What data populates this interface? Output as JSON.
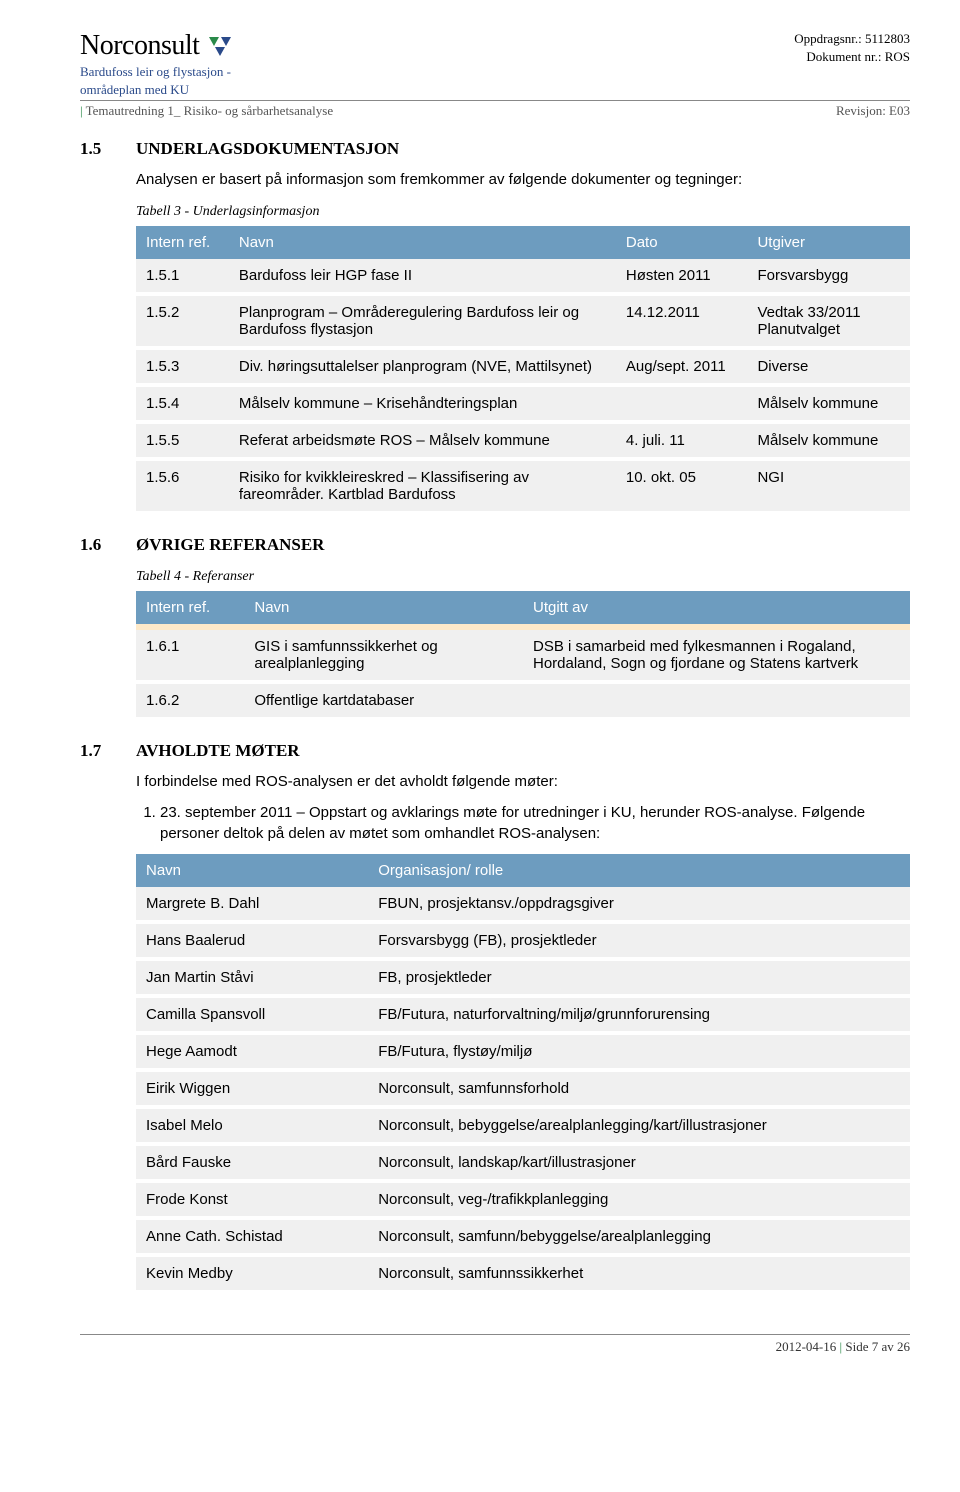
{
  "header": {
    "logo_text": "Norconsult",
    "sub1a": "Bardufoss leir og flystasjon -",
    "sub1b": "områdeplan med KU",
    "meta1": "Oppdragsnr.: 5112803",
    "meta2": "Dokument nr.: ROS",
    "subhead_left": "Temautredning 1_ Risiko- og sårbarhetsanalyse",
    "subhead_right": "Revisjon: E03"
  },
  "s15": {
    "num": "1.5",
    "title": "UNDERLAGSDOKUMENTASJON",
    "intro": "Analysen er basert på informasjon som fremkommer av følgende dokumenter og tegninger:",
    "caption": "Tabell 3 - Underlagsinformasjon",
    "cols": {
      "c1": "Intern ref.",
      "c2": "Navn",
      "c3": "Dato",
      "c4": "Utgiver"
    },
    "rows": [
      {
        "r": "1.5.1",
        "n": "Bardufoss leir HGP fase II",
        "d": "Høsten 2011",
        "u": "Forsvarsbygg"
      },
      {
        "r": "1.5.2",
        "n": "Planprogram – Områderegulering Bardufoss leir og Bardufoss flystasjon",
        "d": "14.12.2011",
        "u": "Vedtak 33/2011 Planutvalget"
      },
      {
        "r": "1.5.3",
        "n": "Div. høringsuttalelser planprogram (NVE, Mattilsynet)",
        "d": "Aug/sept. 2011",
        "u": "Diverse"
      },
      {
        "r": "1.5.4",
        "n": "Målselv kommune – Krisehåndteringsplan",
        "d": "",
        "u": "Målselv kommune"
      },
      {
        "r": "1.5.5",
        "n": "Referat arbeidsmøte ROS – Målselv kommune",
        "d": "4. juli. 11",
        "u": "Målselv kommune"
      },
      {
        "r": "1.5.6",
        "n": "Risiko for kvikkleireskred – Klassifisering av fareområder. Kartblad Bardufoss",
        "d": "10. okt. 05",
        "u": "NGI"
      }
    ]
  },
  "s16": {
    "num": "1.6",
    "title": "ØVRIGE REFERANSER",
    "caption": "Tabell 4 - Referanser",
    "cols": {
      "c1": "Intern ref.",
      "c2": "Navn",
      "c3": "Utgitt av"
    },
    "rows": [
      {
        "r": "1.6.1",
        "n": "GIS i samfunnssikkerhet og arealplanlegging",
        "u": "DSB i samarbeid med fylkesmannen i Rogaland, Hordaland, Sogn og fjordane og Statens kartverk"
      },
      {
        "r": "1.6.2",
        "n": "Offentlige kartdatabaser",
        "u": ""
      }
    ]
  },
  "s17": {
    "num": "1.7",
    "title": "AVHOLDTE MØTER",
    "intro": "I forbindelse med ROS-analysen er det avholdt følgende møter:",
    "item1": "23. september 2011 – Oppstart og avklarings møte for utredninger i KU, herunder ROS-analyse. Følgende personer deltok på delen av møtet som omhandlet ROS-analysen:",
    "cols": {
      "c1": "Navn",
      "c2": "Organisasjon/ rolle"
    },
    "rows": [
      {
        "n": "Margrete B. Dahl",
        "o": "FBUN, prosjektansv./oppdragsgiver"
      },
      {
        "n": "Hans Baalerud",
        "o": "Forsvarsbygg (FB), prosjektleder"
      },
      {
        "n": "Jan Martin Ståvi",
        "o": "FB, prosjektleder"
      },
      {
        "n": "Camilla Spansvoll",
        "o": "FB/Futura, naturforvaltning/miljø/grunnforurensing"
      },
      {
        "n": "Hege Aamodt",
        "o": "FB/Futura, flystøy/miljø"
      },
      {
        "n": "Eirik Wiggen",
        "o": "Norconsult, samfunnsforhold"
      },
      {
        "n": "Isabel Melo",
        "o": "Norconsult, bebyggelse/arealplanlegging/kart/illustrasjoner"
      },
      {
        "n": "Bård Fauske",
        "o": "Norconsult, landskap/kart/illustrasjoner"
      },
      {
        "n": "Frode Konst",
        "o": "Norconsult, veg-/trafikkplanlegging"
      },
      {
        "n": "Anne Cath. Schistad",
        "o": "Norconsult, samfunn/bebyggelse/arealplanlegging"
      },
      {
        "n": "Kevin Medby",
        "o": "Norconsult, samfunnssikkerhet"
      }
    ]
  },
  "footer": {
    "date": "2012-04-16",
    "page": "Side 7 av 26"
  },
  "style": {
    "header_bg": "#6d9cbf",
    "row_bg": "#f0f0f0",
    "spacer_bg": "#fde9c9",
    "table3_widths": [
      "12%",
      "50%",
      "17%",
      "21%"
    ],
    "table4_widths": [
      "14%",
      "36%",
      "50%"
    ],
    "table5_widths": [
      "30%",
      "70%"
    ]
  }
}
